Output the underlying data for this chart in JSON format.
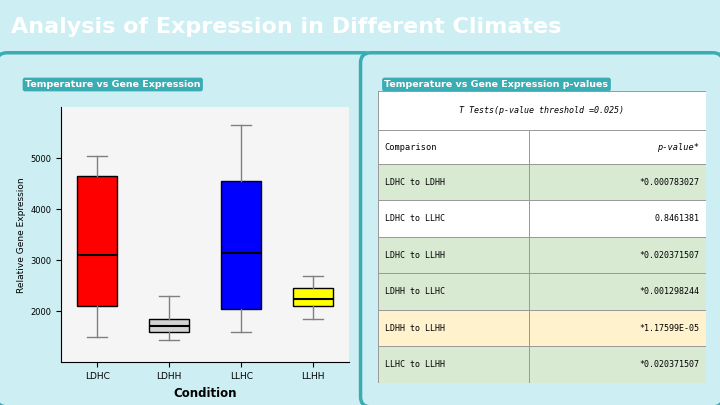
{
  "title": "Analysis of Expression in Different Climates",
  "title_bg": "#3aacb4",
  "title_color": "#ffffff",
  "title_fontsize": 16,
  "left_panel_title": "Temperature vs Gene Expression",
  "right_panel_title": "Temperature vs Gene Expression p-values",
  "panel_title_bg": "#3aacb4",
  "panel_title_color": "#ffffff",
  "panel_bg": "#cdeef2",
  "panel_inner_bg": "#cdeef2",
  "panel_border": "#3aacb4",
  "box_categories": [
    "LDHC",
    "LDHH",
    "LLHC",
    "LLHH"
  ],
  "box_colors": [
    "red",
    "lightgray",
    "blue",
    "yellow"
  ],
  "xlabel": "Condition",
  "ylabel": "Relative Gene Expression",
  "boxplot_data": {
    "LDHC": {
      "whislo": 1500,
      "q1": 2100,
      "med": 3100,
      "q3": 4650,
      "whishi": 5050
    },
    "LDHH": {
      "whislo": 1450,
      "q1": 1600,
      "med": 1720,
      "q3": 1850,
      "whishi": 2300
    },
    "LLHC": {
      "whislo": 1600,
      "q1": 2050,
      "med": 3150,
      "q3": 4550,
      "whishi": 5650
    },
    "LLHH": {
      "whislo": 1850,
      "q1": 2100,
      "med": 2250,
      "q3": 2450,
      "whishi": 2700
    }
  },
  "table_header": "T Tests(p-value threshold =0.025)",
  "col1_header": "Comparison",
  "col2_header": "p-value*",
  "table_rows": [
    {
      "comparison": "LDHC to LDHH",
      "pvalue": "*0.000783027",
      "highlight": "green"
    },
    {
      "comparison": "LDHC to LLHC",
      "pvalue": "0.8461381",
      "highlight": "none"
    },
    {
      "comparison": "LDHC to LLHH",
      "pvalue": "*0.020371507",
      "highlight": "green"
    },
    {
      "comparison": "LDHH to LLHC",
      "pvalue": "*0.001298244",
      "highlight": "green"
    },
    {
      "comparison": "LDHH to LLHH",
      "pvalue": "*1.17599E-05",
      "highlight": "yellow"
    },
    {
      "comparison": "LLHC to LLHH",
      "pvalue": "*0.020371507",
      "highlight": "green"
    }
  ],
  "row_green_bg": "#d9ead3",
  "row_yellow_bg": "#fff2cc",
  "row_white_bg": "#ffffff",
  "ylim": [
    1000,
    6000
  ],
  "yticks": [
    2000,
    3000,
    4000,
    5000
  ]
}
